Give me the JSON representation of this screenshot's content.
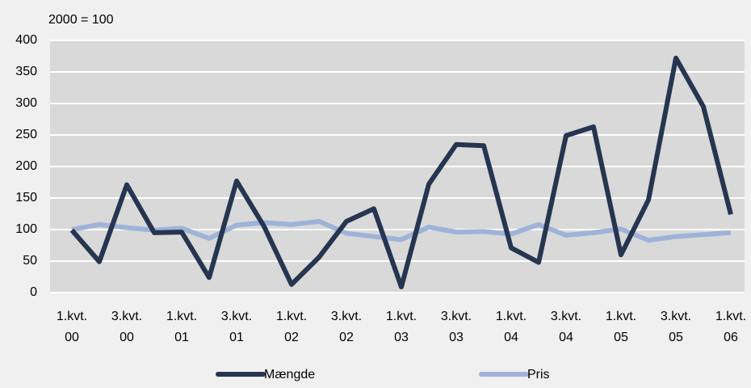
{
  "chart_data": {
    "type": "line",
    "subtitle": "2000 = 100",
    "categories": [
      [
        "1.kvt.",
        "00"
      ],
      null,
      [
        "3.kvt.",
        "00"
      ],
      null,
      [
        "1.kvt.",
        "01"
      ],
      null,
      [
        "3.kvt.",
        "01"
      ],
      null,
      [
        "1.kvt.",
        "02"
      ],
      null,
      [
        "3.kvt.",
        "02"
      ],
      null,
      [
        "1.kvt.",
        "03"
      ],
      null,
      [
        "3.kvt.",
        "03"
      ],
      null,
      [
        "1.kvt.",
        "04"
      ],
      null,
      [
        "3.kvt.",
        "04"
      ],
      null,
      [
        "1.kvt.",
        "05"
      ],
      null,
      [
        "3.kvt.",
        "05"
      ],
      null,
      [
        "1.kvt.",
        "06"
      ]
    ],
    "series": [
      {
        "name": "Mængde",
        "color": "#263550",
        "values": [
          99,
          49,
          171,
          95,
          96,
          24,
          177,
          105,
          13,
          56,
          113,
          133,
          9,
          172,
          235,
          233,
          71,
          48,
          249,
          263,
          60,
          147,
          372,
          295,
          124
        ]
      },
      {
        "name": "Pris",
        "color": "#9fb3d9",
        "values": [
          100,
          108,
          103,
          99,
          102,
          86,
          107,
          111,
          108,
          113,
          94,
          89,
          84,
          104,
          96,
          97,
          93,
          108,
          91,
          95,
          101,
          83,
          89,
          92,
          95
        ]
      }
    ],
    "ylim": [
      0,
      400
    ],
    "yticks": [
      0,
      50,
      100,
      150,
      200,
      250,
      300,
      350,
      400
    ],
    "grid": true,
    "legend": "bottom"
  }
}
